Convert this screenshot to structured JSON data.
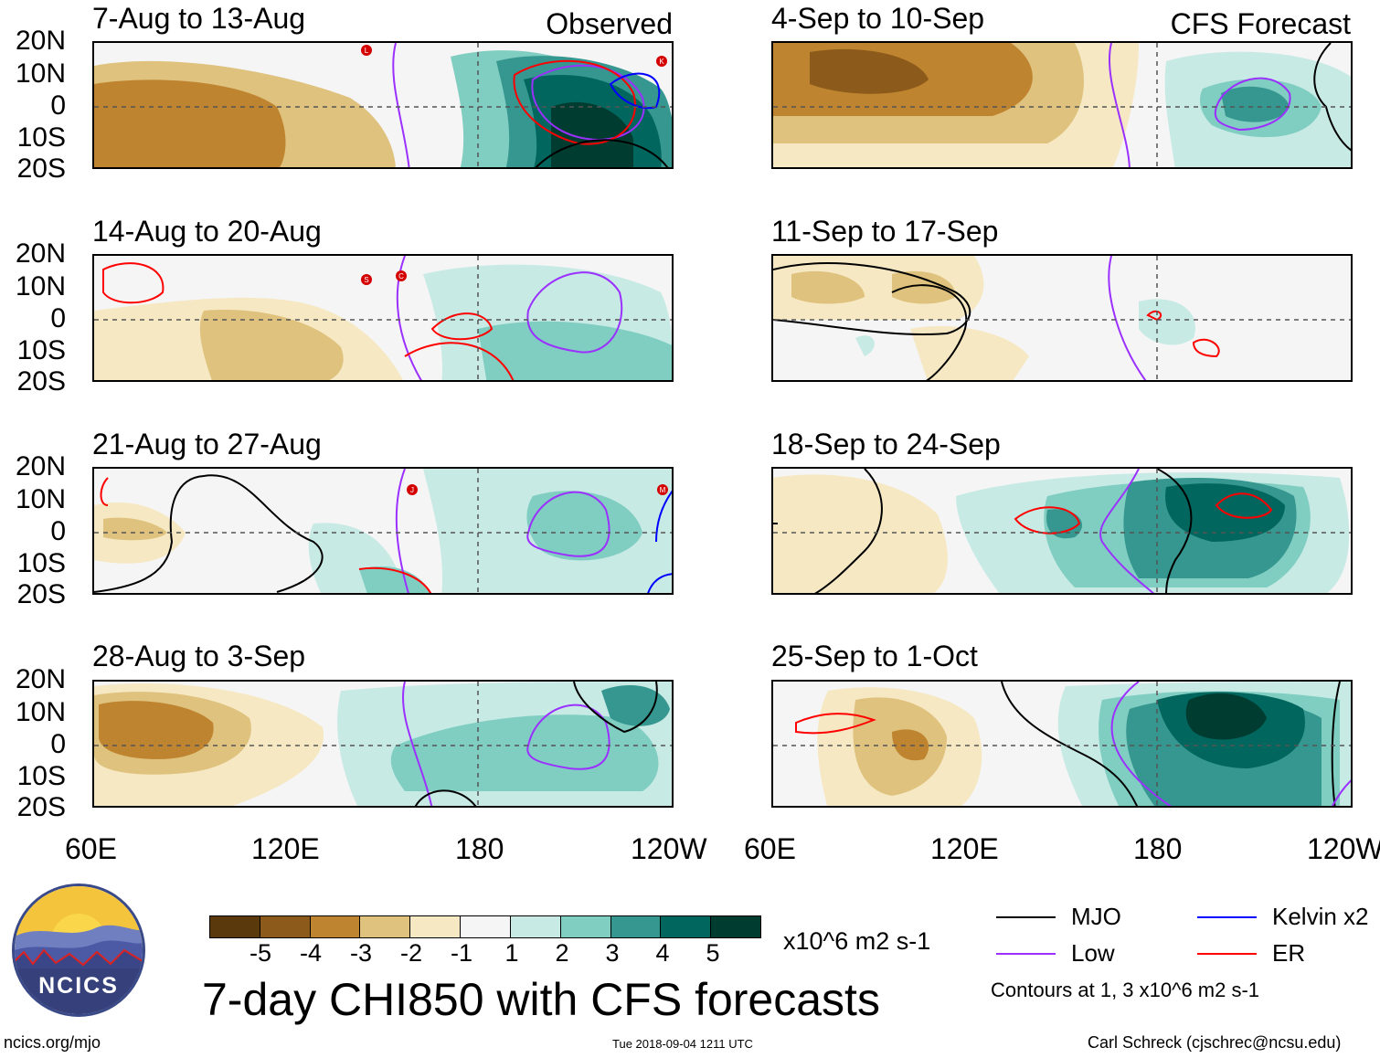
{
  "panels": [
    {
      "title": "7-Aug to 13-Aug",
      "tag": "Observed"
    },
    {
      "title": "14-Aug to 20-Aug",
      "tag": ""
    },
    {
      "title": "21-Aug to 27-Aug",
      "tag": ""
    },
    {
      "title": "28-Aug to 3-Sep",
      "tag": ""
    },
    {
      "title": "4-Sep to 10-Sep",
      "tag": "CFS Forecast"
    },
    {
      "title": "11-Sep to 17-Sep",
      "tag": ""
    },
    {
      "title": "18-Sep to 24-Sep",
      "tag": ""
    },
    {
      "title": "25-Sep to 1-Oct",
      "tag": ""
    }
  ],
  "lat_labels": [
    "20N",
    "10N",
    "0",
    "10S",
    "20S"
  ],
  "lon_labels": [
    "60E",
    "120E",
    "180",
    "120W"
  ],
  "colorbar": {
    "colors": [
      "#5a3a0d",
      "#8c5a1a",
      "#bf8430",
      "#dfc27d",
      "#f6e8c3",
      "#f5f5f5",
      "#c7eae5",
      "#80cdc1",
      "#35978f",
      "#01665e",
      "#003c30"
    ],
    "ticks": [
      "-5",
      "-4",
      "-3",
      "-2",
      "-1",
      "1",
      "2",
      "3",
      "4",
      "5"
    ],
    "units": "x10^6 m2 s-1"
  },
  "title": "7-day CHI850 with CFS forecasts",
  "legend": [
    {
      "label": "MJO",
      "color": "#000000"
    },
    {
      "label": "Low",
      "color": "#9b30ff"
    },
    {
      "label": "Kelvin x2",
      "color": "#0000ff"
    },
    {
      "label": "ER",
      "color": "#ff0000"
    }
  ],
  "contour_note": "Contours at 1, 3 x10^6 m2 s-1",
  "storm_labels": [
    "L",
    "K",
    "S",
    "C",
    "J",
    "M"
  ],
  "logo": {
    "text": "NCICS"
  },
  "footer": {
    "left": "ncics.org/mjo",
    "center": "Tue 2018-09-04 1211 UTC",
    "right": "Carl Schreck (cjschrec@ncsu.edu)"
  }
}
